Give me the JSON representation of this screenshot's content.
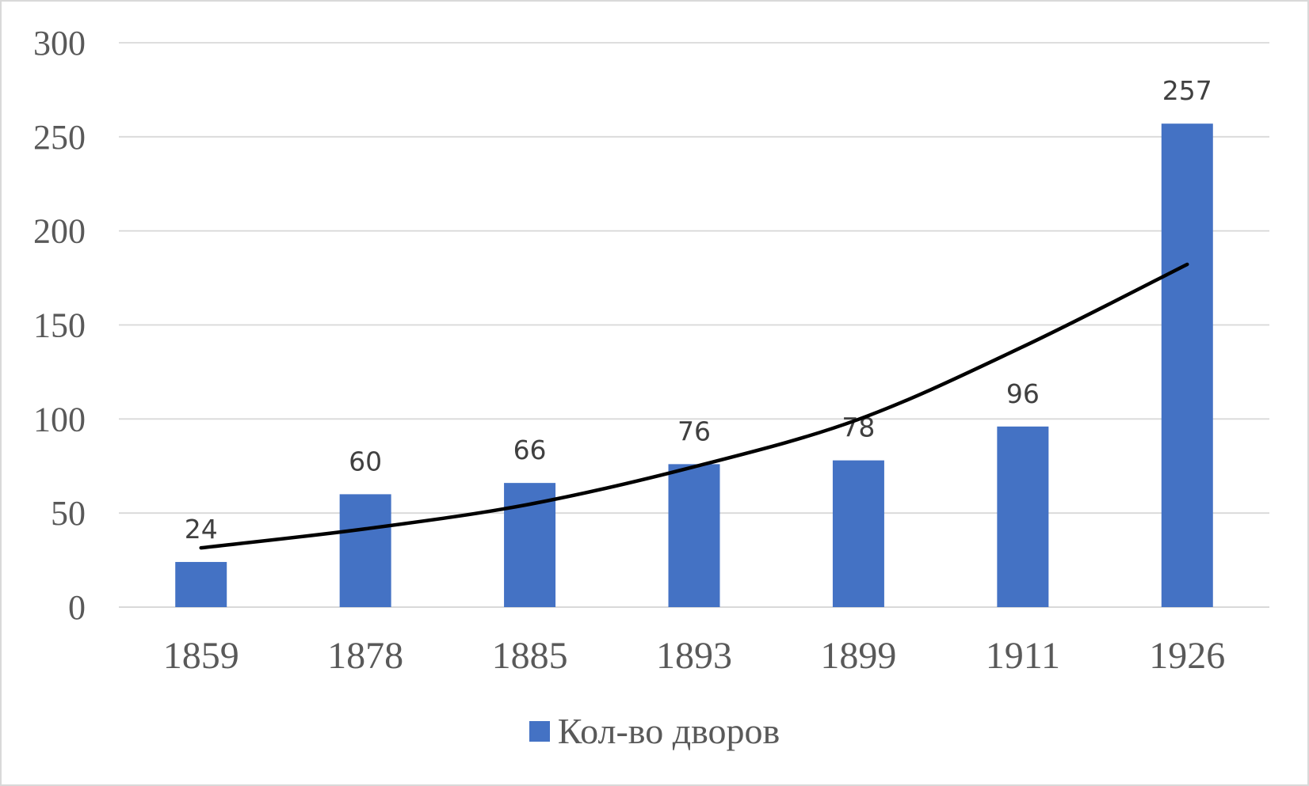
{
  "chart_data": {
    "type": "bar",
    "categories": [
      "1859",
      "1878",
      "1885",
      "1893",
      "1899",
      "1911",
      "1926"
    ],
    "series": [
      {
        "name": "Кол-во дворов",
        "values": [
          24,
          60,
          66,
          76,
          78,
          96,
          257
        ],
        "color": "#4472c4"
      }
    ],
    "data_labels": [
      "24",
      "60",
      "66",
      "76",
      "78",
      "96",
      "257"
    ],
    "y_ticks": [
      "0",
      "50",
      "100",
      "150",
      "200",
      "250",
      "300"
    ],
    "ylim": [
      0,
      300
    ],
    "grid": true,
    "legend_position": "bottom",
    "trendline": {
      "type": "exponential",
      "color": "#000000",
      "values": [
        31.5,
        41.6,
        54.7,
        74.6,
        99.8,
        138.4,
        182.2
      ]
    }
  }
}
